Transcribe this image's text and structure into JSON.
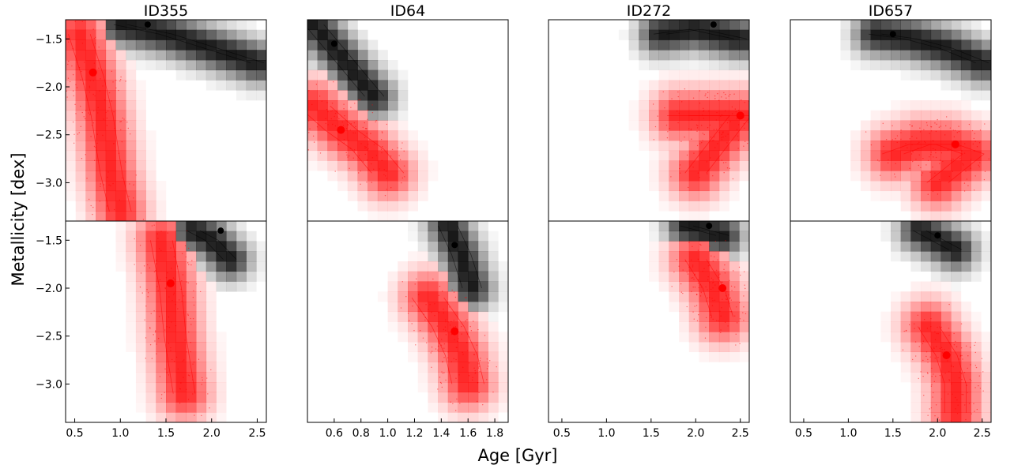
{
  "figure": {
    "xlabel": "Age [Gyr]",
    "ylabel": "Metallicity [dex]",
    "colors": {
      "accent": "#ff0000",
      "secondary": "#000000",
      "frame": "#000000"
    }
  },
  "chart_data": [
    {
      "id": "ID355-top",
      "title": "ID355",
      "type": "heatmap",
      "row": "top",
      "xlim": [
        0.4,
        2.6
      ],
      "ylim": [
        -3.4,
        -1.3
      ],
      "yticks": [
        -1.5,
        -2.0,
        -2.5,
        -3.0
      ],
      "yticklabels": [
        "−1.5",
        "−2.0",
        "−2.5",
        "−3.0"
      ],
      "xticks": [],
      "xticklabels": [],
      "red_peak": {
        "x": 0.7,
        "y": -1.85
      },
      "black_peak": {
        "x": 1.3,
        "y": -1.35
      },
      "red_ridge": [
        [
          0.55,
          -1.45
        ],
        [
          0.7,
          -1.9
        ],
        [
          0.8,
          -2.3
        ],
        [
          0.9,
          -2.9
        ],
        [
          1.0,
          -3.3
        ]
      ],
      "black_ridge": [
        [
          1.0,
          -1.35
        ],
        [
          1.5,
          -1.45
        ],
        [
          2.0,
          -1.6
        ],
        [
          2.5,
          -1.75
        ]
      ]
    },
    {
      "id": "ID64-top",
      "title": "ID64",
      "type": "heatmap",
      "row": "top",
      "xlim": [
        0.4,
        1.9
      ],
      "ylim": [
        -3.4,
        -1.3
      ],
      "yticks": [],
      "yticklabels": [],
      "xticks": [],
      "xticklabels": [],
      "red_peak": {
        "x": 0.65,
        "y": -2.45
      },
      "black_peak": {
        "x": 0.6,
        "y": -1.55
      },
      "red_ridge": [
        [
          0.45,
          -2.2
        ],
        [
          0.65,
          -2.45
        ],
        [
          0.85,
          -2.65
        ],
        [
          1.0,
          -2.9
        ]
      ],
      "black_ridge": [
        [
          0.45,
          -1.35
        ],
        [
          0.6,
          -1.6
        ],
        [
          0.75,
          -1.85
        ],
        [
          0.9,
          -2.1
        ]
      ]
    },
    {
      "id": "ID272-top",
      "title": "ID272",
      "type": "heatmap",
      "row": "top",
      "xlim": [
        0.35,
        2.6
      ],
      "ylim": [
        -3.4,
        -1.3
      ],
      "yticks": [],
      "yticklabels": [],
      "xticks": [],
      "xticklabels": [],
      "red_peak": {
        "x": 2.5,
        "y": -2.3
      },
      "black_peak": {
        "x": 2.2,
        "y": -1.35
      },
      "red_ridge": [
        [
          1.8,
          -2.3
        ],
        [
          2.1,
          -2.3
        ],
        [
          2.5,
          -2.3
        ],
        [
          2.0,
          -2.9
        ]
      ],
      "black_ridge": [
        [
          1.6,
          -1.45
        ],
        [
          2.0,
          -1.4
        ],
        [
          2.5,
          -1.5
        ]
      ]
    },
    {
      "id": "ID657-top",
      "title": "ID657",
      "type": "heatmap",
      "row": "top",
      "xlim": [
        0.35,
        2.6
      ],
      "ylim": [
        -3.4,
        -1.3
      ],
      "yticks": [],
      "yticklabels": [],
      "xticks": [],
      "xticklabels": [],
      "red_peak": {
        "x": 2.2,
        "y": -2.6
      },
      "black_peak": {
        "x": 1.5,
        "y": -1.45
      },
      "red_ridge": [
        [
          1.5,
          -2.7
        ],
        [
          1.8,
          -2.6
        ],
        [
          2.1,
          -2.6
        ],
        [
          2.4,
          -2.7
        ],
        [
          2.0,
          -3.0
        ]
      ],
      "black_ridge": [
        [
          1.3,
          -1.45
        ],
        [
          1.7,
          -1.5
        ],
        [
          2.1,
          -1.6
        ],
        [
          2.5,
          -1.75
        ]
      ]
    },
    {
      "id": "ID355-bottom",
      "title": "",
      "type": "heatmap",
      "row": "bottom",
      "xlim": [
        0.4,
        2.6
      ],
      "ylim": [
        -3.4,
        -1.3
      ],
      "yticks": [
        -1.5,
        -2.0,
        -2.5,
        -3.0
      ],
      "yticklabels": [
        "−1.5",
        "−2.0",
        "−2.5",
        "−3.0"
      ],
      "xticks": [
        0.5,
        1.0,
        1.5,
        2.0,
        2.5
      ],
      "xticklabels": [
        "0.5",
        "1.0",
        "1.5",
        "2.0",
        "2.5"
      ],
      "red_peak": {
        "x": 1.55,
        "y": -1.95
      },
      "black_peak": {
        "x": 2.1,
        "y": -1.4
      },
      "red_ridge": [
        [
          1.45,
          -1.5
        ],
        [
          1.55,
          -2.0
        ],
        [
          1.6,
          -2.5
        ],
        [
          1.7,
          -3.1
        ]
      ],
      "black_ridge": [
        [
          1.8,
          -1.4
        ],
        [
          2.0,
          -1.5
        ],
        [
          2.2,
          -1.7
        ]
      ]
    },
    {
      "id": "ID64-bottom",
      "title": "",
      "type": "heatmap",
      "row": "bottom",
      "xlim": [
        0.4,
        1.9
      ],
      "ylim": [
        -3.4,
        -1.3
      ],
      "yticks": [],
      "yticklabels": [],
      "xticks": [
        0.6,
        0.8,
        1.0,
        1.2,
        1.4,
        1.6,
        1.8
      ],
      "xticklabels": [
        "0.6",
        "0.8",
        "1.0",
        "1.2",
        "1.4",
        "1.6",
        "1.8"
      ],
      "red_peak": {
        "x": 1.5,
        "y": -2.45
      },
      "black_peak": {
        "x": 1.5,
        "y": -1.55
      },
      "red_ridge": [
        [
          1.3,
          -2.1
        ],
        [
          1.45,
          -2.4
        ],
        [
          1.55,
          -2.7
        ],
        [
          1.6,
          -3.0
        ]
      ],
      "black_ridge": [
        [
          1.45,
          -1.35
        ],
        [
          1.55,
          -1.65
        ],
        [
          1.63,
          -2.0
        ]
      ]
    },
    {
      "id": "ID272-bottom",
      "title": "",
      "type": "heatmap",
      "row": "bottom",
      "xlim": [
        0.35,
        2.6
      ],
      "ylim": [
        -3.4,
        -1.3
      ],
      "yticks": [],
      "yticklabels": [],
      "xticks": [
        0.5,
        1.0,
        1.5,
        2.0,
        2.5
      ],
      "xticklabels": [
        "0.5",
        "1.0",
        "1.5",
        "2.0",
        "2.5"
      ],
      "red_peak": {
        "x": 2.3,
        "y": -2.0
      },
      "black_peak": {
        "x": 2.15,
        "y": -1.35
      },
      "red_ridge": [
        [
          2.0,
          -1.7
        ],
        [
          2.2,
          -2.0
        ],
        [
          2.3,
          -2.3
        ]
      ],
      "black_ridge": [
        [
          1.9,
          -1.35
        ],
        [
          2.1,
          -1.4
        ],
        [
          2.3,
          -1.45
        ]
      ]
    },
    {
      "id": "ID657-bottom",
      "title": "",
      "type": "heatmap",
      "row": "bottom",
      "xlim": [
        0.35,
        2.6
      ],
      "ylim": [
        -3.4,
        -1.3
      ],
      "yticks": [],
      "yticklabels": [],
      "xticks": [
        0.5,
        1.0,
        1.5,
        2.0,
        2.5
      ],
      "xticklabels": [
        "0.5",
        "1.0",
        "1.5",
        "2.0",
        "2.5"
      ],
      "red_peak": {
        "x": 2.1,
        "y": -2.7
      },
      "black_peak": {
        "x": 2.0,
        "y": -1.45
      },
      "red_ridge": [
        [
          1.9,
          -2.4
        ],
        [
          2.1,
          -2.7
        ],
        [
          2.2,
          -3.0
        ],
        [
          2.2,
          -3.3
        ]
      ],
      "black_ridge": [
        [
          1.8,
          -1.4
        ],
        [
          2.0,
          -1.5
        ],
        [
          2.2,
          -1.6
        ]
      ]
    }
  ]
}
